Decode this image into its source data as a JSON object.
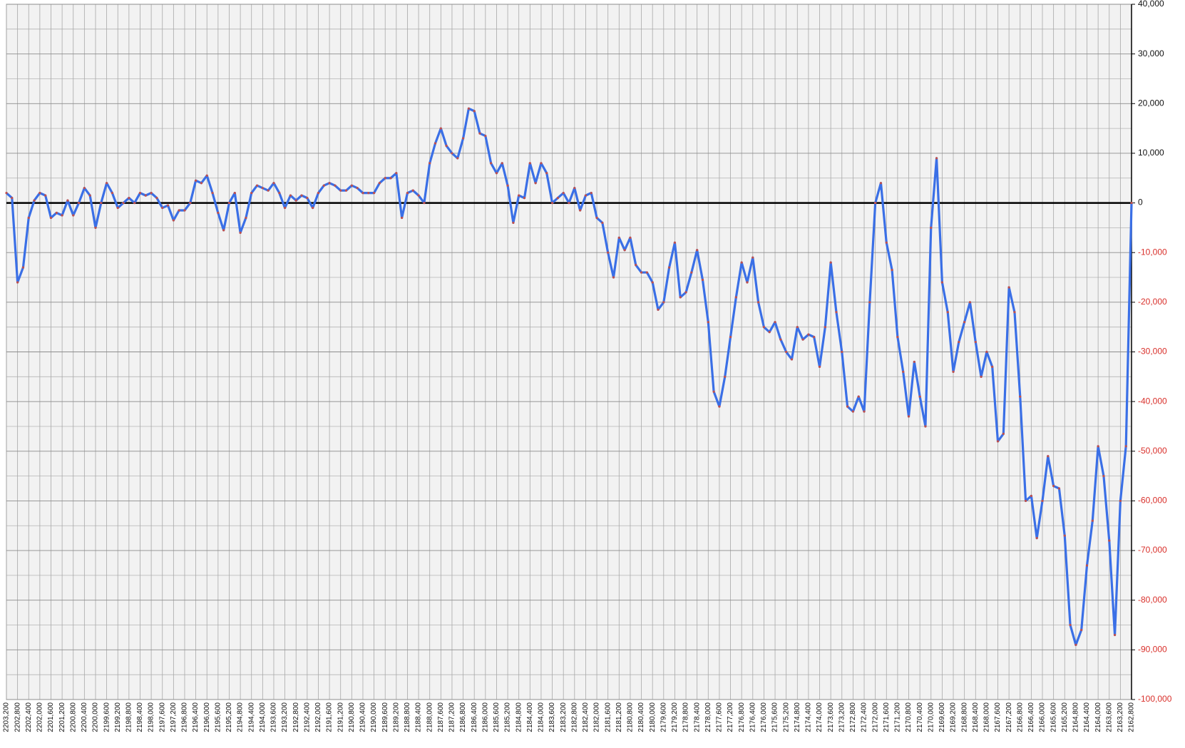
{
  "chart_data": {
    "type": "line",
    "color": "#3a6fe6",
    "marker_color": "#c0504d",
    "negative_label_color": "#d9302b",
    "grid": true,
    "xlim": [
      2203200,
      2162800
    ],
    "ylim": [
      -100000,
      40000
    ],
    "yticks": [
      {
        "value": 40000,
        "label": "40,000"
      },
      {
        "value": 30000,
        "label": "30,000"
      },
      {
        "value": 20000,
        "label": "20,000"
      },
      {
        "value": 10000,
        "label": "10,000"
      },
      0,
      {
        "value": -10000,
        "label": "-10,000"
      },
      {
        "value": -20000,
        "label": "-20,000"
      },
      {
        "value": -30000,
        "label": "-30,000"
      },
      {
        "value": -40000,
        "label": "-40,000"
      },
      {
        "value": -50000,
        "label": "-50,000"
      },
      {
        "value": -60000,
        "label": "-60,000"
      },
      {
        "value": -70000,
        "label": "-70,000"
      },
      {
        "value": -80000,
        "label": "-80,000"
      },
      {
        "value": -90000,
        "label": "-90,000"
      },
      {
        "value": -100000,
        "label": "-100,000"
      }
    ],
    "xticks": [
      {
        "value": 2203200,
        "label": "2203,200"
      },
      {
        "value": 2202800,
        "label": "2202,800"
      },
      {
        "value": 2202400,
        "label": "2202,400"
      },
      {
        "value": 2202000,
        "label": "2202,000"
      },
      {
        "value": 2201600,
        "label": "2201,600"
      },
      {
        "value": 2201200,
        "label": "2201,200"
      },
      {
        "value": 2200800,
        "label": "2200,800"
      },
      {
        "value": 2200400,
        "label": "2200,400"
      },
      {
        "value": 2200000,
        "label": "2200,000"
      },
      {
        "value": 2199600,
        "label": "2199,600"
      },
      {
        "value": 2199200,
        "label": "2199,200"
      },
      {
        "value": 2198800,
        "label": "2198,800"
      },
      {
        "value": 2198400,
        "label": "2198,400"
      },
      {
        "value": 2198000,
        "label": "2198,000"
      },
      {
        "value": 2197600,
        "label": "2197,600"
      },
      {
        "value": 2197200,
        "label": "2197,200"
      },
      {
        "value": 2196800,
        "label": "2196,800"
      },
      {
        "value": 2196400,
        "label": "2196,400"
      },
      {
        "value": 2196000,
        "label": "2196,000"
      },
      {
        "value": 2195600,
        "label": "2195,600"
      },
      {
        "value": 2195200,
        "label": "2195,200"
      },
      {
        "value": 2194800,
        "label": "2194,800"
      },
      {
        "value": 2194400,
        "label": "2194,400"
      },
      {
        "value": 2194000,
        "label": "2194,000"
      },
      {
        "value": 2193600,
        "label": "2193,600"
      },
      {
        "value": 2193200,
        "label": "2193,200"
      },
      {
        "value": 2192800,
        "label": "2192,800"
      },
      {
        "value": 2192400,
        "label": "2192,400"
      },
      {
        "value": 2192000,
        "label": "2192,000"
      },
      {
        "value": 2191600,
        "label": "2191,600"
      },
      {
        "value": 2191200,
        "label": "2191,200"
      },
      {
        "value": 2190800,
        "label": "2190,800"
      },
      {
        "value": 2190400,
        "label": "2190,400"
      },
      {
        "value": 2190000,
        "label": "2190,000"
      },
      {
        "value": 2189600,
        "label": "2189,600"
      },
      {
        "value": 2189200,
        "label": "2189,200"
      },
      {
        "value": 2188800,
        "label": "2188,800"
      },
      {
        "value": 2188400,
        "label": "2188,400"
      },
      {
        "value": 2188000,
        "label": "2188,000"
      },
      {
        "value": 2187600,
        "label": "2187,600"
      },
      {
        "value": 2187200,
        "label": "2187,200"
      },
      {
        "value": 2186800,
        "label": "2186,800"
      },
      {
        "value": 2186400,
        "label": "2186,400"
      },
      {
        "value": 2186000,
        "label": "2186,000"
      },
      {
        "value": 2185600,
        "label": "2185,600"
      },
      {
        "value": 2185200,
        "label": "2185,200"
      },
      {
        "value": 2184800,
        "label": "2184,800"
      },
      {
        "value": 2184400,
        "label": "2184,400"
      },
      {
        "value": 2184000,
        "label": "2184,000"
      },
      {
        "value": 2183600,
        "label": "2183,600"
      },
      {
        "value": 2183200,
        "label": "2183,200"
      },
      {
        "value": 2182800,
        "label": "2182,800"
      },
      {
        "value": 2182400,
        "label": "2182,400"
      },
      {
        "value": 2182000,
        "label": "2182,000"
      },
      {
        "value": 2181600,
        "label": "2181,600"
      },
      {
        "value": 2181200,
        "label": "2181,200"
      },
      {
        "value": 2180800,
        "label": "2180,800"
      },
      {
        "value": 2180400,
        "label": "2180,400"
      },
      {
        "value": 2180000,
        "label": "2180,000"
      },
      {
        "value": 2179600,
        "label": "2179,600"
      },
      {
        "value": 2179200,
        "label": "2179,200"
      },
      {
        "value": 2178800,
        "label": "2178,800"
      },
      {
        "value": 2178400,
        "label": "2178,400"
      },
      {
        "value": 2178000,
        "label": "2178,000"
      },
      {
        "value": 2177600,
        "label": "2177,600"
      },
      {
        "value": 2177200,
        "label": "2177,200"
      },
      {
        "value": 2176800,
        "label": "2176,800"
      },
      {
        "value": 2176400,
        "label": "2176,400"
      },
      {
        "value": 2176000,
        "label": "2176,000"
      },
      {
        "value": 2175600,
        "label": "2175,600"
      },
      {
        "value": 2175200,
        "label": "2175,200"
      },
      {
        "value": 2174800,
        "label": "2174,800"
      },
      {
        "value": 2174400,
        "label": "2174,400"
      },
      {
        "value": 2174000,
        "label": "2174,000"
      },
      {
        "value": 2173600,
        "label": "2173,600"
      },
      {
        "value": 2173200,
        "label": "2173,200"
      },
      {
        "value": 2172800,
        "label": "2172,800"
      },
      {
        "value": 2172400,
        "label": "2172,400"
      },
      {
        "value": 2172000,
        "label": "2172,000"
      },
      {
        "value": 2171600,
        "label": "2171,600"
      },
      {
        "value": 2171200,
        "label": "2171,200"
      },
      {
        "value": 2170800,
        "label": "2170,800"
      },
      {
        "value": 2170400,
        "label": "2170,400"
      },
      {
        "value": 2170000,
        "label": "2170,000"
      },
      {
        "value": 2169600,
        "label": "2169,600"
      },
      {
        "value": 2169200,
        "label": "2169,200"
      },
      {
        "value": 2168800,
        "label": "2168,800"
      },
      {
        "value": 2168400,
        "label": "2168,400"
      },
      {
        "value": 2168000,
        "label": "2168,000"
      },
      {
        "value": 2167600,
        "label": "2167,600"
      },
      {
        "value": 2167200,
        "label": "2167,200"
      },
      {
        "value": 2166800,
        "label": "2166,800"
      },
      {
        "value": 2166400,
        "label": "2166,400"
      },
      {
        "value": 2166000,
        "label": "2166,000"
      },
      {
        "value": 2165600,
        "label": "2165,600"
      },
      {
        "value": 2165200,
        "label": "2165,200"
      },
      {
        "value": 2164800,
        "label": "2164,800"
      },
      {
        "value": 2164400,
        "label": "2164,400"
      },
      {
        "value": 2164000,
        "label": "2164,000"
      },
      {
        "value": 2163600,
        "label": "2163,600"
      },
      {
        "value": 2163200,
        "label": "2163,200"
      },
      {
        "value": 2162800,
        "label": "2162,800"
      }
    ],
    "x": [
      2203200,
      2203000,
      2202800,
      2202600,
      2202400,
      2202200,
      2202000,
      2201800,
      2201600,
      2201400,
      2201200,
      2201000,
      2200800,
      2200600,
      2200400,
      2200200,
      2200000,
      2199800,
      2199600,
      2199400,
      2199200,
      2199000,
      2198800,
      2198600,
      2198400,
      2198200,
      2198000,
      2197800,
      2197600,
      2197400,
      2197200,
      2197000,
      2196800,
      2196600,
      2196400,
      2196200,
      2196000,
      2195800,
      2195600,
      2195400,
      2195200,
      2195000,
      2194800,
      2194600,
      2194400,
      2194200,
      2194000,
      2193800,
      2193600,
      2193400,
      2193200,
      2193000,
      2192800,
      2192600,
      2192400,
      2192200,
      2192000,
      2191800,
      2191600,
      2191400,
      2191200,
      2191000,
      2190800,
      2190600,
      2190400,
      2190200,
      2190000,
      2189800,
      2189600,
      2189400,
      2189200,
      2189000,
      2188800,
      2188600,
      2188400,
      2188200,
      2188000,
      2187800,
      2187600,
      2187400,
      2187200,
      2187000,
      2186800,
      2186600,
      2186400,
      2186200,
      2186000,
      2185800,
      2185600,
      2185400,
      2185200,
      2185000,
      2184800,
      2184600,
      2184400,
      2184200,
      2184000,
      2183800,
      2183600,
      2183400,
      2183200,
      2183000,
      2182800,
      2182600,
      2182400,
      2182200,
      2182000,
      2181800,
      2181600,
      2181400,
      2181200,
      2181000,
      2180800,
      2180600,
      2180400,
      2180200,
      2180000,
      2179800,
      2179600,
      2179400,
      2179200,
      2179000,
      2178800,
      2178600,
      2178400,
      2178200,
      2178000,
      2177800,
      2177600,
      2177400,
      2177200,
      2177000,
      2176800,
      2176600,
      2176400,
      2176200,
      2176000,
      2175800,
      2175600,
      2175400,
      2175200,
      2175000,
      2174800,
      2174600,
      2174400,
      2174200,
      2174000,
      2173800,
      2173600,
      2173400,
      2173200,
      2173000,
      2172800,
      2172600,
      2172400,
      2172200,
      2172000,
      2171800,
      2171600,
      2171400,
      2171200,
      2171000,
      2170800,
      2170600,
      2170400,
      2170200,
      2170000,
      2169800,
      2169600,
      2169400,
      2169200,
      2169000,
      2168800,
      2168600,
      2168400,
      2168200,
      2168000,
      2167800,
      2167600,
      2167400,
      2167200,
      2167000,
      2166800,
      2166600,
      2166400,
      2166200,
      2166000,
      2165800,
      2165600,
      2165400,
      2165200,
      2165000,
      2164800,
      2164600,
      2164400,
      2164200,
      2164000,
      2163800,
      2163600,
      2163400,
      2163200,
      2163000,
      2162800
    ],
    "values": [
      2000,
      1000,
      -16000,
      -13000,
      -3000,
      500,
      2000,
      1500,
      -3000,
      -2000,
      -2500,
      500,
      -2500,
      0,
      3000,
      1500,
      -5000,
      0,
      4000,
      2000,
      -1000,
      0,
      1000,
      0,
      2000,
      1500,
      2000,
      1000,
      -1000,
      -500,
      -3500,
      -1500,
      -1500,
      0,
      4500,
      4000,
      5500,
      2000,
      -2000,
      -5500,
      0,
      2000,
      -6000,
      -3000,
      2000,
      3500,
      3000,
      2500,
      4000,
      2000,
      -1000,
      1500,
      500,
      1500,
      1000,
      -1000,
      2000,
      3500,
      4000,
      3500,
      2500,
      2500,
      3500,
      3000,
      2000,
      2000,
      2000,
      4000,
      5000,
      5000,
      6000,
      -3000,
      2000,
      2500,
      1500,
      0,
      8000,
      12000,
      15000,
      11500,
      10000,
      9000,
      13000,
      19000,
      18500,
      14000,
      13500,
      8000,
      6000,
      8000,
      3500,
      -4000,
      1500,
      1000,
      8000,
      4000,
      8000,
      6000,
      0,
      1000,
      2000,
      0,
      3000,
      -1500,
      1500,
      2000,
      -3000,
      -4000,
      -10000,
      -15000,
      -7000,
      -9500,
      -7000,
      -12500,
      -14000,
      -14000,
      -16000,
      -21500,
      -20000,
      -13000,
      -8000,
      -19000,
      -18000,
      -14000,
      -9500,
      -15500,
      -24000,
      -38000,
      -41000,
      -35000,
      -27000,
      -19000,
      -12000,
      -16000,
      -11000,
      -20000,
      -25000,
      -26000,
      -24000,
      -27500,
      -30000,
      -31500,
      -25000,
      -27500,
      -26500,
      -27000,
      -33000,
      -25000,
      -12000,
      -22000,
      -30000,
      -41000,
      -42000,
      -39000,
      -42000,
      -20000,
      0,
      4000,
      -8000,
      -13500,
      -27000,
      -34000,
      -43000,
      -32000,
      -39000,
      -45000,
      -5000,
      9000,
      -16000,
      -22000,
      -34000,
      -28000,
      -24000,
      -20000,
      -28000,
      -35000,
      -30000,
      -33000,
      -48000,
      -46500,
      -17000,
      -22000,
      -39000,
      -60000,
      -59000,
      -67500,
      -60000,
      -51000,
      -57000,
      -57500,
      -67000,
      -85000,
      -89000,
      -86000,
      -73000,
      -64000,
      -49000,
      -55000,
      -68000,
      -87000,
      -60000,
      -49000,
      0
    ]
  }
}
